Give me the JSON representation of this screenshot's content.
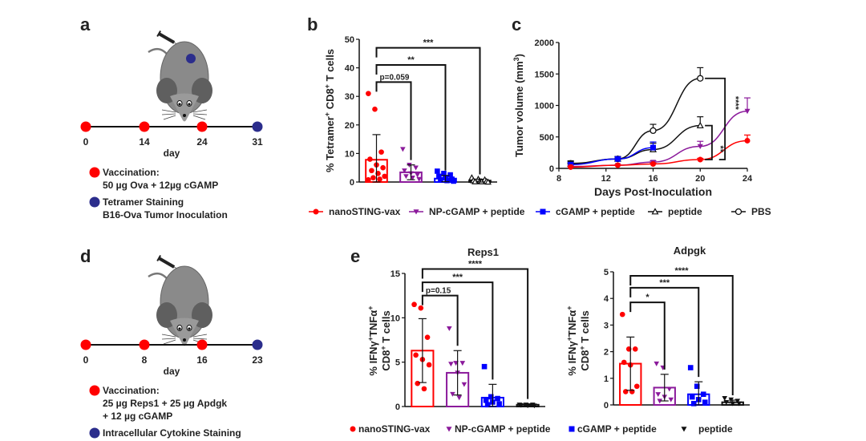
{
  "panels": {
    "a": {
      "letter": "a",
      "timeline_days": [
        "0",
        "14",
        "24",
        "31"
      ],
      "timeline_colors": [
        "#ff0000",
        "#ff0000",
        "#ff0000",
        "#2b2d8c"
      ],
      "axis_label": "day",
      "legend": [
        {
          "color": "#ff0000",
          "lines": [
            "Vaccination:",
            "50 µg Ova + 12µg cGAMP"
          ]
        },
        {
          "color": "#2b2d8c",
          "lines": [
            "Tetramer Staining",
            "B16-Ova Tumor Inoculation"
          ]
        }
      ]
    },
    "d": {
      "letter": "d",
      "timeline_days": [
        "0",
        "8",
        "16",
        "23"
      ],
      "timeline_colors": [
        "#ff0000",
        "#ff0000",
        "#ff0000",
        "#2b2d8c"
      ],
      "axis_label": "day",
      "legend": [
        {
          "color": "#ff0000",
          "lines": [
            "Vaccination:",
            "25 µg Reps1 + 25 µg Apdgk",
            "+ 12 µg cGAMP"
          ]
        },
        {
          "color": "#2b2d8c",
          "lines": [
            "Intracellular Cytokine Staining"
          ]
        }
      ]
    },
    "b_letter": "b",
    "c_letter": "c",
    "e_letter": "e"
  },
  "legend_top": [
    {
      "label": "nanoSTING-vax",
      "color": "#ff0000",
      "marker": "circle"
    },
    {
      "label": "NP-cGAMP + peptide",
      "color": "#8b1a9b",
      "marker": "triangle-down"
    },
    {
      "label": "cGAMP + peptide",
      "color": "#0000ff",
      "marker": "square"
    },
    {
      "label": "peptide",
      "color": "#111111",
      "marker": "triangle-up-open"
    },
    {
      "label": "PBS",
      "color": "#111111",
      "marker": "circle-open"
    }
  ],
  "legend_bottom": [
    {
      "label": "nanoSTING-vax",
      "color": "#ff0000",
      "marker": "circle"
    },
    {
      "label": "NP-cGAMP + peptide",
      "color": "#8b1a9b",
      "marker": "triangle-down"
    },
    {
      "label": "cGAMP + peptide",
      "color": "#0000ff",
      "marker": "square"
    },
    {
      "label": "peptide",
      "color": "#111111",
      "marker": "triangle-down"
    }
  ],
  "chart_data": [
    {
      "id": "b",
      "type": "bar",
      "title": "",
      "ylabel": "% Tetramer+ CD8+ T cells",
      "ylim": [
        0,
        50
      ],
      "yticks": [
        0,
        10,
        20,
        30,
        40,
        50
      ],
      "categories": [
        "nanoSTING-vax",
        "NP-cGAMP + peptide",
        "cGAMP + peptide",
        "peptide"
      ],
      "colors": [
        "#ff0000",
        "#8b1a9b",
        "#0000ff",
        "#111111"
      ],
      "markers": [
        "circle",
        "triangle-down",
        "square",
        "triangle-up-open"
      ],
      "means": [
        7.8,
        3.4,
        1.2,
        0.5
      ],
      "sd": [
        8.8,
        2.6,
        1.1,
        0.5
      ],
      "points": [
        [
          31,
          25.5,
          10.5,
          8,
          6,
          5,
          4,
          3,
          2,
          1.5,
          1,
          0.8
        ],
        [
          11.5,
          6,
          5,
          4,
          3,
          2.5,
          2,
          1.5,
          1
        ],
        [
          3.8,
          3,
          2.5,
          2,
          1.5,
          1,
          0.8,
          0.5,
          0.3
        ],
        [
          1.5,
          1,
          0.8,
          0.5,
          0.3,
          0.2,
          0.1,
          0.1,
          0
        ]
      ],
      "significance": [
        {
          "from": 0,
          "to": 1,
          "label": "p=0.059",
          "y": 35
        },
        {
          "from": 0,
          "to": 2,
          "label": "**",
          "y": 41
        },
        {
          "from": 0,
          "to": 3,
          "label": "***",
          "y": 47
        }
      ]
    },
    {
      "id": "c",
      "type": "line",
      "title": "",
      "xlabel": "Days Post-Inoculation",
      "ylabel": "Tumor volume (mm3)",
      "xlim": [
        8,
        24
      ],
      "ylim": [
        0,
        2000
      ],
      "xticks": [
        8,
        12,
        16,
        20,
        24
      ],
      "yticks": [
        0,
        500,
        1000,
        1500,
        2000
      ],
      "series": [
        {
          "name": "PBS",
          "color": "#111111",
          "marker": "circle-open",
          "x": [
            9,
            13,
            16,
            20
          ],
          "y": [
            80,
            150,
            600,
            1430
          ],
          "err": [
            40,
            40,
            100,
            170
          ]
        },
        {
          "name": "peptide",
          "color": "#111111",
          "marker": "triangle-up-open",
          "x": [
            9,
            13,
            16,
            20
          ],
          "y": [
            70,
            150,
            300,
            680
          ],
          "err": [
            40,
            40,
            100,
            140
          ]
        },
        {
          "name": "cGAMP + peptide",
          "color": "#0000ff",
          "marker": "square",
          "x": [
            9,
            13,
            16
          ],
          "y": [
            60,
            150,
            330
          ],
          "err": [
            30,
            30,
            90
          ]
        },
        {
          "name": "NP-cGAMP + peptide",
          "color": "#8b1a9b",
          "marker": "triangle-down",
          "x": [
            9,
            13,
            16,
            20,
            24
          ],
          "y": [
            30,
            50,
            100,
            350,
            910
          ],
          "err": [
            10,
            10,
            20,
            80,
            210
          ]
        },
        {
          "name": "nanoSTING-vax",
          "color": "#ff0000",
          "marker": "circle",
          "x": [
            9,
            13,
            16,
            20,
            24
          ],
          "y": [
            20,
            50,
            70,
            140,
            440
          ],
          "err": [
            10,
            10,
            15,
            20,
            90
          ]
        }
      ],
      "significance": [
        {
          "label": "****",
          "from_y": 1430,
          "to_y": 140
        },
        {
          "label": "**",
          "from_y": 680,
          "to_y": 140
        }
      ]
    },
    {
      "id": "e-reps1",
      "type": "bar",
      "title": "Reps1",
      "ylabel": "% IFNγ+TNFα+ CD8+ T cells",
      "ylim": [
        0,
        15
      ],
      "yticks": [
        0,
        5,
        10,
        15
      ],
      "categories": [
        "nanoSTING-vax",
        "NP-cGAMP + peptide",
        "cGAMP + peptide",
        "peptide"
      ],
      "colors": [
        "#ff0000",
        "#8b1a9b",
        "#0000ff",
        "#111111"
      ],
      "markers": [
        "circle",
        "triangle-down",
        "square",
        "triangle-down"
      ],
      "means": [
        6.3,
        3.8,
        1.0,
        0.2
      ],
      "sd": [
        3.6,
        2.5,
        1.5,
        0.1
      ],
      "points": [
        [
          11.5,
          11.1,
          7.8,
          5.8,
          5.3,
          4.7,
          2.6,
          2.0
        ],
        [
          8.8,
          4.9,
          4.9,
          4.8,
          3.8,
          2.5,
          1.4,
          1.0
        ],
        [
          4.5,
          1.1,
          0.9,
          0.7,
          0.5,
          0.3,
          0.2
        ],
        [
          0.2,
          0.2,
          0.2,
          0.15,
          0.1,
          0.1
        ]
      ],
      "significance": [
        {
          "from": 0,
          "to": 1,
          "label": "p=0.15",
          "y": 12.5
        },
        {
          "from": 0,
          "to": 2,
          "label": "***",
          "y": 14
        },
        {
          "from": 0,
          "to": 3,
          "label": "****",
          "y": 15.5
        }
      ]
    },
    {
      "id": "e-adpgk",
      "type": "bar",
      "title": "Adpgk",
      "ylabel": "% IFNγ+TNFα+ CD8+ T cells",
      "ylim": [
        0,
        5
      ],
      "yticks": [
        0,
        1,
        2,
        3,
        4,
        5
      ],
      "categories": [
        "nanoSTING-vax",
        "NP-cGAMP + peptide",
        "cGAMP + peptide",
        "peptide"
      ],
      "colors": [
        "#ff0000",
        "#8b1a9b",
        "#0000ff",
        "#111111"
      ],
      "markers": [
        "circle",
        "triangle-down",
        "square",
        "triangle-down"
      ],
      "means": [
        1.55,
        0.65,
        0.4,
        0.1
      ],
      "sd": [
        1.0,
        0.5,
        0.47,
        0.08
      ],
      "points": [
        [
          3.4,
          2.1,
          2.1,
          1.6,
          1.5,
          0.7,
          0.5,
          0.5
        ],
        [
          1.55,
          1.4,
          0.6,
          0.4,
          0.3,
          0.2,
          0.15
        ],
        [
          1.4,
          0.7,
          0.4,
          0.3,
          0.2,
          0.1,
          0.05
        ],
        [
          0.25,
          0.2,
          0.15,
          0.1,
          0.05,
          0.05
        ]
      ],
      "significance": [
        {
          "from": 0,
          "to": 1,
          "label": "*",
          "y": 3.85
        },
        {
          "from": 0,
          "to": 2,
          "label": "***",
          "y": 4.4
        },
        {
          "from": 0,
          "to": 3,
          "label": "****",
          "y": 4.85
        }
      ]
    }
  ]
}
